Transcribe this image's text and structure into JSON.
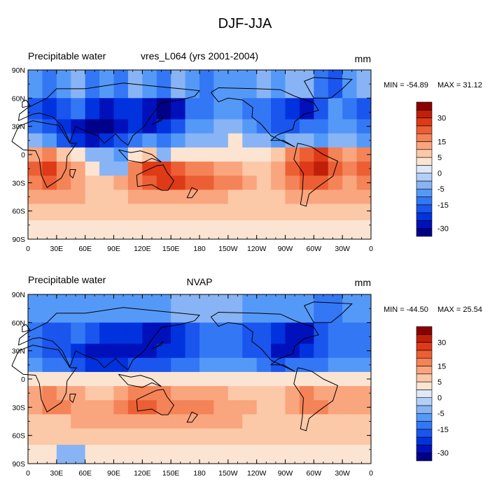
{
  "title": "DJF-JJA",
  "chart_data": [
    {
      "type": "heatmap",
      "variable": "Precipitable water",
      "case_name": "vres_L064 (yrs 2001-2004)",
      "units": "mm",
      "min_label": "MIN = -54.89",
      "max_label": "MAX =  31.12",
      "ylim": [
        -90,
        90
      ],
      "xlim": [
        0,
        360
      ],
      "y_tick_labels": [
        "90N",
        "60N",
        "30N",
        "0",
        "30S",
        "60S",
        "90S"
      ],
      "x_tick_labels": [
        "0",
        "30E",
        "60E",
        "90E",
        "120E",
        "150E",
        "180",
        "150W",
        "120W",
        "90W",
        "60W",
        "30W",
        "0"
      ],
      "rows": [
        {
          "lat": 75,
          "values": [
            -10,
            -15,
            -10,
            -5,
            -15,
            -10,
            -15,
            -5,
            -10,
            -15,
            -5,
            -10,
            -15,
            -10,
            -10,
            -10,
            -5,
            -10,
            -5,
            -5,
            -15,
            -20,
            -10,
            -5
          ]
        },
        {
          "lat": 45,
          "values": [
            -20,
            -25,
            -20,
            -15,
            -25,
            -30,
            -25,
            -25,
            -30,
            -40,
            -30,
            -15,
            -15,
            -10,
            -10,
            -15,
            -15,
            -20,
            -25,
            -30,
            -20,
            -10,
            -15,
            -20
          ]
        },
        {
          "lat": 30,
          "values": [
            -15,
            -20,
            -25,
            -30,
            -40,
            -40,
            -30,
            -25,
            -30,
            -25,
            -20,
            -10,
            -10,
            -5,
            -5,
            -10,
            -15,
            -20,
            -20,
            -15,
            -15,
            -10,
            -10,
            -15
          ]
        },
        {
          "lat": 15,
          "values": [
            -5,
            -10,
            -20,
            -25,
            -30,
            -25,
            -20,
            -15,
            -10,
            -15,
            -10,
            -5,
            -5,
            -3,
            3,
            -3,
            -5,
            -10,
            -5,
            -5,
            -10,
            -5,
            -5,
            -10
          ]
        },
        {
          "lat": 0,
          "values": [
            10,
            15,
            5,
            3,
            -3,
            -5,
            -10,
            3,
            5,
            -3,
            3,
            3,
            3,
            3,
            3,
            3,
            3,
            5,
            15,
            20,
            25,
            15,
            10,
            15
          ]
        },
        {
          "lat": -15,
          "values": [
            20,
            25,
            15,
            10,
            3,
            -3,
            -5,
            15,
            25,
            25,
            20,
            15,
            15,
            10,
            10,
            5,
            5,
            10,
            20,
            25,
            30,
            20,
            15,
            20
          ]
        },
        {
          "lat": -30,
          "values": [
            15,
            20,
            15,
            10,
            5,
            5,
            10,
            15,
            20,
            25,
            25,
            20,
            20,
            15,
            15,
            10,
            5,
            10,
            15,
            20,
            20,
            15,
            10,
            15
          ]
        },
        {
          "lat": -45,
          "values": [
            10,
            10,
            10,
            10,
            5,
            5,
            5,
            10,
            10,
            10,
            10,
            10,
            10,
            10,
            5,
            5,
            5,
            5,
            10,
            10,
            10,
            10,
            10,
            10
          ]
        },
        {
          "lat": -60,
          "values": [
            5,
            5,
            5,
            5,
            5,
            5,
            5,
            5,
            5,
            5,
            5,
            5,
            5,
            5,
            5,
            5,
            5,
            5,
            5,
            5,
            5,
            5,
            5,
            5
          ]
        },
        {
          "lat": -80,
          "values": [
            3,
            3,
            3,
            3,
            3,
            3,
            3,
            3,
            3,
            3,
            3,
            3,
            3,
            3,
            3,
            3,
            3,
            3,
            3,
            3,
            3,
            3,
            3,
            3
          ]
        }
      ]
    },
    {
      "type": "heatmap",
      "variable": "Precipitable water",
      "case_name": "NVAP",
      "units": "mm",
      "min_label": "MIN = -44.50",
      "max_label": "MAX =  25.54",
      "ylim": [
        -90,
        90
      ],
      "xlim": [
        0,
        360
      ],
      "y_tick_labels": [
        "90N",
        "60N",
        "30N",
        "0",
        "30S",
        "60S",
        "90S"
      ],
      "x_tick_labels": [
        "0",
        "30E",
        "60E",
        "90E",
        "120E",
        "150E",
        "180",
        "150W",
        "120W",
        "90W",
        "60W",
        "30W",
        "0"
      ],
      "rows": [
        {
          "lat": 75,
          "values": [
            -10,
            -10,
            -10,
            -10,
            -10,
            -10,
            -10,
            -10,
            -10,
            -10,
            -5,
            -5,
            -5,
            -5,
            -5,
            -10,
            -10,
            -10,
            -10,
            -10,
            -15,
            -15,
            -10,
            -10
          ]
        },
        {
          "lat": 45,
          "values": [
            -15,
            -20,
            -20,
            -15,
            -20,
            -25,
            -25,
            -25,
            -30,
            -30,
            -25,
            -20,
            -15,
            -15,
            -15,
            -20,
            -20,
            -25,
            -30,
            -30,
            -20,
            -15,
            -15,
            -15
          ]
        },
        {
          "lat": 30,
          "values": [
            -15,
            -20,
            -20,
            -25,
            -30,
            -30,
            -30,
            -30,
            -30,
            -25,
            -25,
            -20,
            -15,
            -15,
            -15,
            -20,
            -20,
            -30,
            -30,
            -25,
            -20,
            -15,
            -15,
            -15
          ]
        },
        {
          "lat": 15,
          "values": [
            -10,
            -15,
            -15,
            -20,
            -25,
            -25,
            -25,
            -20,
            -20,
            -20,
            -15,
            -15,
            -10,
            -10,
            -10,
            -10,
            -15,
            -20,
            -15,
            -15,
            -15,
            -10,
            -10,
            -10
          ]
        },
        {
          "lat": 0,
          "values": [
            3,
            3,
            3,
            3,
            3,
            3,
            3,
            3,
            3,
            3,
            3,
            3,
            3,
            3,
            3,
            3,
            3,
            3,
            3,
            3,
            3,
            3,
            3,
            3
          ]
        },
        {
          "lat": -15,
          "values": [
            10,
            15,
            10,
            10,
            5,
            5,
            10,
            15,
            15,
            15,
            10,
            10,
            10,
            10,
            5,
            5,
            5,
            5,
            10,
            15,
            10,
            10,
            10,
            10
          ]
        },
        {
          "lat": -30,
          "values": [
            10,
            15,
            15,
            10,
            10,
            10,
            15,
            20,
            20,
            15,
            15,
            15,
            15,
            10,
            10,
            10,
            5,
            5,
            10,
            15,
            15,
            10,
            10,
            10
          ]
        },
        {
          "lat": -45,
          "values": [
            5,
            5,
            5,
            10,
            10,
            10,
            10,
            10,
            10,
            10,
            10,
            10,
            10,
            10,
            10,
            5,
            5,
            5,
            5,
            5,
            5,
            5,
            5,
            5
          ]
        },
        {
          "lat": -60,
          "values": [
            5,
            5,
            5,
            5,
            5,
            5,
            5,
            5,
            5,
            5,
            5,
            5,
            5,
            5,
            5,
            5,
            5,
            5,
            5,
            5,
            5,
            5,
            5,
            5
          ]
        },
        {
          "lat": -80,
          "values": [
            3,
            3,
            -3,
            -3,
            3,
            3,
            3,
            3,
            3,
            3,
            3,
            3,
            3,
            3,
            3,
            3,
            3,
            3,
            3,
            3,
            3,
            3,
            3,
            3
          ]
        }
      ]
    }
  ],
  "colorbar": {
    "levels": [
      -35,
      -30,
      -25,
      -20,
      -15,
      -10,
      -5,
      -2,
      0,
      2,
      5,
      10,
      15,
      20,
      25,
      30,
      35
    ],
    "colors": [
      "#000088",
      "#0011bb",
      "#0033dd",
      "#1a55ee",
      "#3377f5",
      "#5599f8",
      "#88b4f5",
      "#b4cff7",
      "#dde9f8",
      "#fce4d2",
      "#fbc8a8",
      "#f9a57e",
      "#f48358",
      "#ec5f34",
      "#de3a18",
      "#c01f0a",
      "#8a0000"
    ],
    "tick_labels": [
      "30",
      "15",
      "5",
      "0",
      "-5",
      "-15",
      "-30"
    ],
    "tick_values": [
      30,
      15,
      5,
      0,
      -5,
      -15,
      -30
    ]
  }
}
